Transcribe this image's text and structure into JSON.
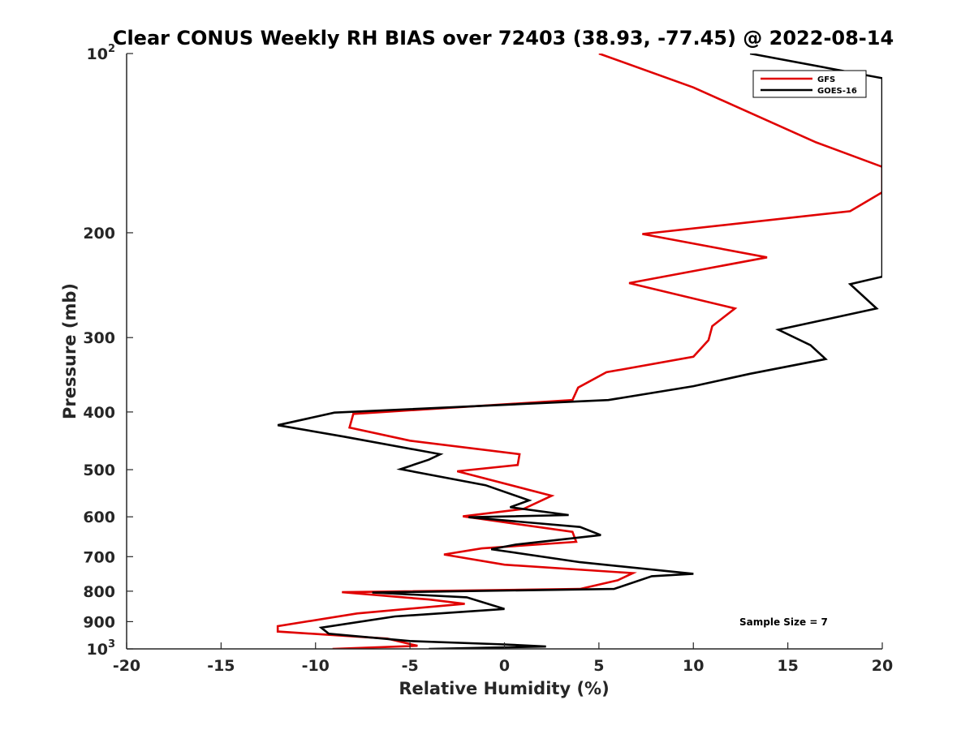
{
  "chart_data": {
    "type": "line",
    "title": "Clear CONUS Weekly RH BIAS over 72403 (38.93, -77.45) @ 2022-08-14",
    "xlabel": "Relative Humidity (%)",
    "ylabel": "Pressure (mb)",
    "xlim": [
      -20,
      20
    ],
    "ylim": [
      100,
      1000
    ],
    "y_scale": "log",
    "y_reversed": true,
    "x_ticks": [
      "-20",
      "-15",
      "-10",
      "-5",
      "0",
      "5",
      "10",
      "15",
      "20"
    ],
    "y_ticks": [
      {
        "value": 100,
        "base": "10",
        "exp": "2"
      },
      {
        "value": 200,
        "label": "200"
      },
      {
        "value": 300,
        "label": "300"
      },
      {
        "value": 400,
        "label": "400"
      },
      {
        "value": 500,
        "label": "500"
      },
      {
        "value": 600,
        "label": "600"
      },
      {
        "value": 700,
        "label": "700"
      },
      {
        "value": 800,
        "label": "800"
      },
      {
        "value": 900,
        "label": "900"
      },
      {
        "value": 1000,
        "base": "10",
        "exp": "3"
      }
    ],
    "legend_position": "top-right",
    "annotation": "Sample Size = 7",
    "series": [
      {
        "name": "GFS",
        "color": "#e00000",
        "points": [
          [
            5.0,
            100
          ],
          [
            10.0,
            114
          ],
          [
            16.5,
            141
          ],
          [
            20.0,
            155
          ],
          [
            20.0,
            171
          ],
          [
            18.3,
            184
          ],
          [
            7.3,
            201
          ],
          [
            13.9,
            220
          ],
          [
            6.6,
            243
          ],
          [
            12.2,
            268
          ],
          [
            11.0,
            287
          ],
          [
            10.8,
            303
          ],
          [
            10.0,
            323
          ],
          [
            5.4,
            343
          ],
          [
            3.9,
            364
          ],
          [
            3.6,
            382
          ],
          [
            -8.0,
            403
          ],
          [
            -8.2,
            425
          ],
          [
            -5.0,
            447
          ],
          [
            0.8,
            471
          ],
          [
            0.7,
            491
          ],
          [
            -2.5,
            503
          ],
          [
            2.5,
            553
          ],
          [
            1.0,
            582
          ],
          [
            -2.2,
            599
          ],
          [
            3.6,
            636
          ],
          [
            3.8,
            661
          ],
          [
            -1.2,
            678
          ],
          [
            -3.2,
            694
          ],
          [
            0.0,
            722
          ],
          [
            6.8,
            746
          ],
          [
            6.0,
            767
          ],
          [
            4.0,
            793
          ],
          [
            -8.6,
            803
          ],
          [
            -4.0,
            826
          ],
          [
            -2.1,
            840
          ],
          [
            -7.8,
            872
          ],
          [
            -12.0,
            916
          ],
          [
            -12.0,
            935
          ],
          [
            -6.2,
            961
          ],
          [
            -4.6,
            988
          ],
          [
            -9.1,
            1000
          ]
        ]
      },
      {
        "name": "GOES-16",
        "color": "#000000",
        "points": [
          [
            13.0,
            100
          ],
          [
            20.0,
            110
          ],
          [
            20.0,
            237
          ],
          [
            18.3,
            244
          ],
          [
            19.7,
            268
          ],
          [
            14.5,
            291
          ],
          [
            16.2,
            309
          ],
          [
            17.0,
            326
          ],
          [
            13.0,
            345
          ],
          [
            10.0,
            362
          ],
          [
            5.5,
            382
          ],
          [
            -9.0,
            401
          ],
          [
            -12.0,
            421
          ],
          [
            -8.5,
            440
          ],
          [
            -3.4,
            471
          ],
          [
            -4.0,
            481
          ],
          [
            -5.5,
            499
          ],
          [
            -1.0,
            531
          ],
          [
            1.3,
            563
          ],
          [
            0.3,
            578
          ],
          [
            3.4,
            596
          ],
          [
            -1.9,
            601
          ],
          [
            4.0,
            624
          ],
          [
            5.1,
            644
          ],
          [
            0.6,
            668
          ],
          [
            -0.7,
            680
          ],
          [
            4.0,
            715
          ],
          [
            10.0,
            748
          ],
          [
            7.8,
            755
          ],
          [
            5.8,
            793
          ],
          [
            -7.0,
            804
          ],
          [
            -2.0,
            819
          ],
          [
            0.0,
            857
          ],
          [
            -5.8,
            882
          ],
          [
            -9.7,
            921
          ],
          [
            -9.3,
            943
          ],
          [
            -5.0,
            970
          ],
          [
            0.0,
            983
          ],
          [
            2.2,
            991
          ],
          [
            -4.0,
            1000
          ]
        ]
      }
    ]
  }
}
